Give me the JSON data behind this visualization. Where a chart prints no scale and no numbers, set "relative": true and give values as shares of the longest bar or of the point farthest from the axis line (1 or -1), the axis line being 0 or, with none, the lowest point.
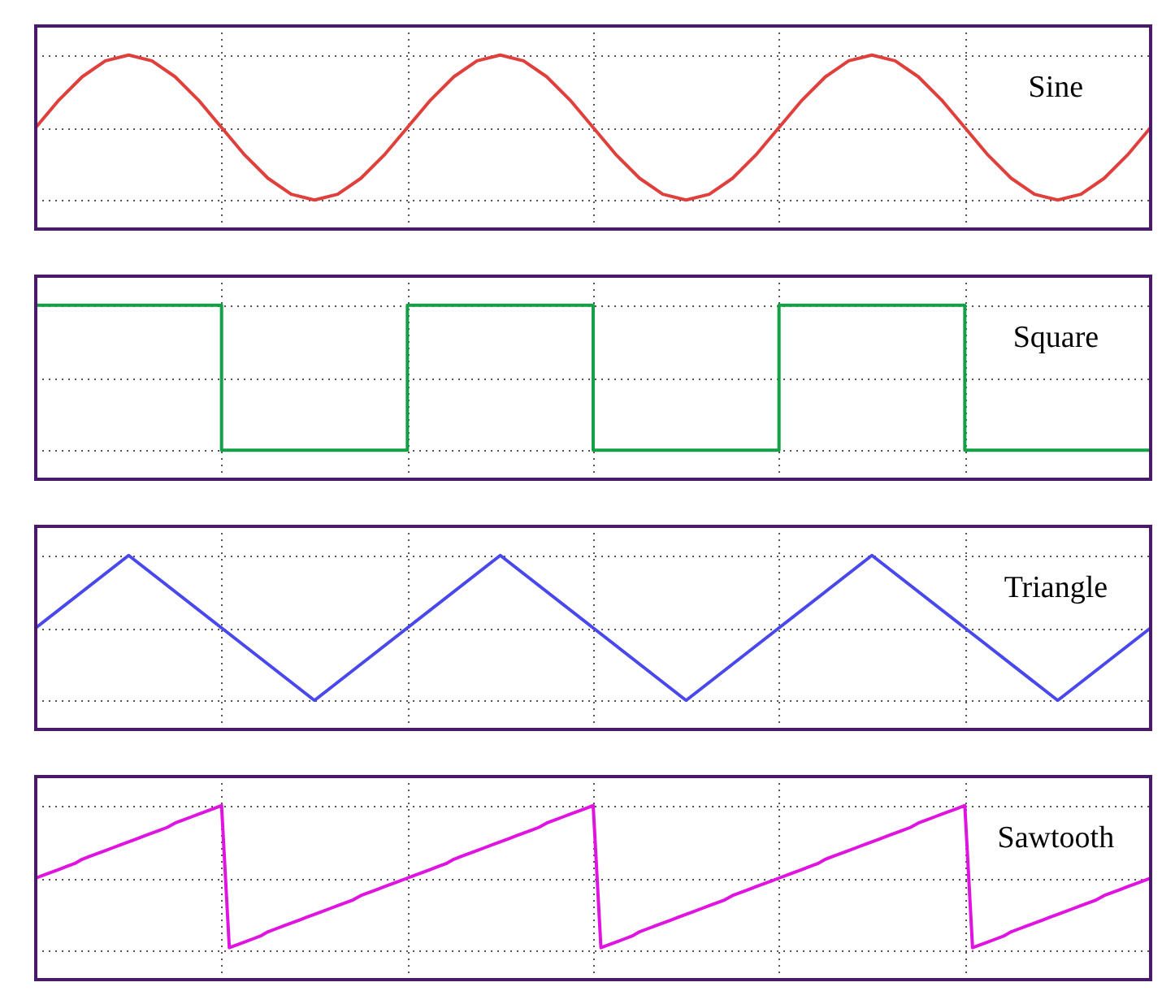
{
  "chart_data": [
    {
      "type": "line",
      "relative": true,
      "categories": [
        null,
        null,
        null,
        null,
        null,
        null,
        null,
        null,
        null,
        null,
        null,
        null,
        null,
        null,
        null,
        null,
        null,
        null,
        null,
        null,
        null,
        null,
        null,
        null,
        null,
        null,
        null,
        null,
        null,
        null,
        null,
        null,
        null,
        null,
        null,
        null,
        null,
        null,
        null,
        null,
        null,
        null,
        null,
        null,
        null,
        null,
        null,
        null,
        null
      ],
      "grid": true,
      "tick_labels": false,
      "series": [
        {
          "name": "Sine",
          "color": "#e0403c",
          "values": [
            0.5,
            0.69,
            0.85,
            0.96,
            1,
            0.96,
            0.85,
            0.69,
            0.5,
            0.31,
            0.15,
            0.04,
            0,
            0.04,
            0.15,
            0.31,
            0.5,
            0.69,
            0.85,
            0.96,
            1,
            0.96,
            0.85,
            0.69,
            0.5,
            0.31,
            0.15,
            0.04,
            0,
            0.04,
            0.15,
            0.31,
            0.5,
            0.69,
            0.85,
            0.96,
            1,
            0.96,
            0.85,
            0.69,
            0.5,
            0.31,
            0.15,
            0.04,
            0,
            0.04,
            0.15,
            0.31,
            0.5
          ]
        }
      ]
    },
    {
      "type": "step",
      "relative": true,
      "categories": [
        null,
        null,
        null,
        null,
        null,
        null,
        null
      ],
      "grid": true,
      "tick_labels": false,
      "series": [
        {
          "name": "Square",
          "color": "#14a046",
          "values": [
            1,
            0,
            1,
            0,
            1,
            0,
            0
          ]
        }
      ]
    },
    {
      "type": "line",
      "relative": true,
      "categories": [
        null,
        null,
        null,
        null,
        null,
        null,
        null,
        null,
        null,
        null,
        null,
        null,
        null
      ],
      "grid": true,
      "tick_labels": false,
      "series": [
        {
          "name": "Triangle",
          "color": "#4848ec",
          "values": [
            0.5,
            1,
            0.5,
            0,
            0.5,
            1,
            0.5,
            0,
            0.5,
            1,
            0.5,
            0,
            0.5
          ]
        }
      ]
    },
    {
      "type": "line",
      "relative": true,
      "categories": [
        null,
        null,
        null,
        null,
        null,
        null,
        null,
        null,
        null,
        null,
        null,
        null,
        null,
        null,
        null,
        null,
        null,
        null,
        null,
        null,
        null,
        null,
        null,
        null,
        null,
        null,
        null,
        null,
        null,
        null,
        null,
        null,
        null,
        null,
        null,
        null,
        null,
        null,
        null,
        null,
        null,
        null,
        null,
        null,
        null,
        null,
        null,
        null,
        null,
        null,
        null,
        null,
        null,
        null,
        null,
        null,
        null,
        null,
        null,
        null,
        null,
        null,
        null,
        null,
        null,
        null,
        null,
        null,
        null,
        null,
        null,
        null,
        null,
        null,
        null,
        null,
        null,
        null,
        null,
        null,
        null,
        null,
        null,
        null,
        null,
        null,
        null,
        null,
        null,
        null,
        null,
        null,
        null,
        null,
        null,
        null,
        null,
        null,
        null,
        null,
        null,
        null,
        null,
        null,
        null,
        null,
        null,
        null,
        null,
        null,
        null,
        null,
        null,
        null,
        null,
        null,
        null,
        null,
        null,
        null,
        null,
        null,
        null,
        null,
        null,
        null,
        null,
        null,
        null,
        null,
        null,
        null,
        null,
        null,
        null,
        null,
        null,
        null,
        null,
        null,
        null,
        null,
        null,
        null,
        null
      ],
      "grid": true,
      "tick_labels": false,
      "series": [
        {
          "name": "Sawtooth",
          "color": "#e014e0",
          "values": [
            0.5,
            0.52,
            0.54,
            0.56,
            0.58,
            0.6,
            0.63,
            0.65,
            0.67,
            0.69,
            0.71,
            0.73,
            0.75,
            0.77,
            0.79,
            0.81,
            0.83,
            0.85,
            0.88,
            0.9,
            0.92,
            0.94,
            0.96,
            0.98,
            1,
            0.02,
            0.04,
            0.06,
            0.08,
            0.1,
            0.13,
            0.15,
            0.17,
            0.19,
            0.21,
            0.23,
            0.25,
            0.27,
            0.29,
            0.31,
            0.33,
            0.35,
            0.38,
            0.4,
            0.42,
            0.44,
            0.46,
            0.48,
            0.5,
            0.52,
            0.54,
            0.56,
            0.58,
            0.6,
            0.63,
            0.65,
            0.67,
            0.69,
            0.71,
            0.73,
            0.75,
            0.77,
            0.79,
            0.81,
            0.83,
            0.85,
            0.88,
            0.9,
            0.92,
            0.94,
            0.96,
            0.98,
            1,
            0.02,
            0.04,
            0.06,
            0.08,
            0.1,
            0.13,
            0.15,
            0.17,
            0.19,
            0.21,
            0.23,
            0.25,
            0.27,
            0.29,
            0.31,
            0.33,
            0.35,
            0.38,
            0.4,
            0.42,
            0.44,
            0.46,
            0.48,
            0.5,
            0.52,
            0.54,
            0.56,
            0.58,
            0.6,
            0.63,
            0.65,
            0.67,
            0.69,
            0.71,
            0.73,
            0.75,
            0.77,
            0.79,
            0.81,
            0.83,
            0.85,
            0.88,
            0.9,
            0.92,
            0.94,
            0.96,
            0.98,
            1,
            0.02,
            0.04,
            0.06,
            0.08,
            0.1,
            0.13,
            0.15,
            0.17,
            0.19,
            0.21,
            0.23,
            0.25,
            0.27,
            0.29,
            0.31,
            0.33,
            0.35,
            0.38,
            0.4,
            0.42,
            0.44,
            0.46,
            0.48,
            0.5
          ]
        }
      ]
    }
  ]
}
